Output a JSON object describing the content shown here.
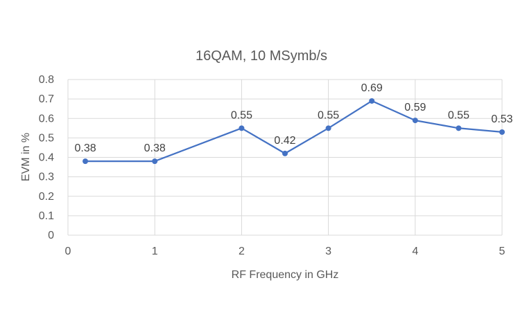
{
  "chart_data": {
    "type": "line",
    "title": "16QAM, 10 MSymb/s",
    "xlabel": "RF Frequency in GHz",
    "ylabel": "EVM in %",
    "xlim": [
      0,
      5
    ],
    "ylim": [
      0,
      0.8
    ],
    "xticks": [
      0,
      1,
      2,
      3,
      4,
      5
    ],
    "yticks": [
      0,
      0.1,
      0.2,
      0.3,
      0.4,
      0.5,
      0.6,
      0.7,
      0.8
    ],
    "grid": true,
    "legend": "none",
    "series": [
      {
        "x": [
          0.2,
          1,
          2,
          2.5,
          3,
          3.5,
          4,
          4.5,
          5
        ],
        "values": [
          0.38,
          0.38,
          0.55,
          0.42,
          0.55,
          0.69,
          0.59,
          0.55,
          0.53
        ],
        "labels": [
          "0.38",
          "0.38",
          "0.55",
          "0.42",
          "0.55",
          "0.69",
          "0.59",
          "0.55",
          "0.53"
        ],
        "color": "#4472C4"
      }
    ]
  },
  "colors": {
    "gridline": "#d9d9d9",
    "tick_text": "#595959",
    "label_text": "#404040"
  }
}
